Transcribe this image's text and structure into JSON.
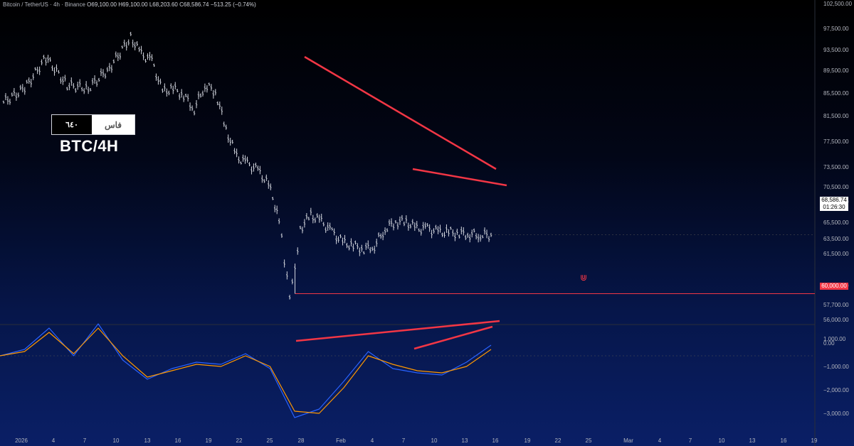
{
  "header": {
    "symbol": "Bitcoin / TetherUS · 4h · Binance",
    "open": "O69,100.00",
    "high": "H69,100.00",
    "low": "L68,203.60",
    "close": "C68,586.74",
    "change": "−513.25 (−0.74%)"
  },
  "logo": {
    "left_text": "٦٤٠",
    "right_text": "فاس"
  },
  "overlay_label": "BTC/4H",
  "last_price": {
    "value": "68,586.74",
    "countdown": "01:26:30"
  },
  "level_label": "60,000.00",
  "colors": {
    "accent_red": "#f23645",
    "macd": "#2962ff",
    "signal": "#ff9800",
    "candle": "#d1d4dc"
  },
  "chart_data": [
    {
      "type": "line",
      "title": "",
      "series": [
        {
          "name": "",
          "x": [
            0,
            4,
            8,
            12,
            16,
            20,
            24,
            26,
            28,
            30,
            32,
            34,
            36,
            38,
            40,
            42,
            44,
            46,
            48,
            50,
            52,
            53,
            54,
            55,
            56,
            58,
            60,
            62,
            64,
            66,
            68,
            70,
            72,
            74,
            76,
            78,
            80,
            82,
            84,
            86,
            88,
            90,
            92
          ],
          "values": [
            88000,
            90000,
            94500,
            90500,
            90000,
            93000,
            97500,
            95000,
            94000,
            89500,
            90000,
            89000,
            87000,
            90500,
            89500,
            84000,
            80000,
            79000,
            78000,
            76000,
            71000,
            65000,
            60000,
            64000,
            69500,
            71500,
            70500,
            69000,
            67500,
            67000,
            66500,
            67000,
            69500,
            70500,
            70500,
            69500,
            69500,
            69000,
            69000,
            68800,
            68700,
            68600,
            68586.74
          ]
        }
      ],
      "ylim": [
        56000,
        102500
      ],
      "y_ticks": [
        "102,500.00",
        "97,500.00",
        "93,500.00",
        "89,500.00",
        "85,500.00",
        "81,500.00",
        "77,500.00",
        "73,500.00",
        "70,500.00",
        "68,500.00",
        "65,500.00",
        "63,500.00",
        "61,500.00",
        "60,000.00",
        "57,700.00",
        "56,000.00"
      ],
      "x_ticks": [
        "2026",
        "4",
        "7",
        "10",
        "13",
        "16",
        "19",
        "22",
        "25",
        "28",
        "Feb",
        "4",
        "7",
        "10",
        "13",
        "16",
        "19",
        "22",
        "25",
        "Mar",
        "4",
        "7",
        "10",
        "13",
        "16",
        "19"
      ],
      "annotations": {
        "horizontal_level": 60000
      }
    },
    {
      "type": "line",
      "title": "",
      "series": [
        {
          "name": "",
          "values": [
            0,
            300,
            1300,
            0,
            1500,
            -200,
            -1100,
            -600,
            -300,
            -400,
            100,
            -600,
            -2900,
            -2500,
            -1200,
            200,
            -600,
            -800,
            -900,
            -300,
            500
          ]
        },
        {
          "name": "",
          "values": [
            0,
            200,
            1100,
            100,
            1300,
            0,
            -1000,
            -700,
            -400,
            -500,
            0,
            -500,
            -2600,
            -2700,
            -1500,
            0,
            -400,
            -700,
            -800,
            -500,
            300
          ]
        }
      ],
      "ylim": [
        -3500,
        1300
      ],
      "y_ticks": [
        "1,000.00",
        "0.00",
        "−1,000.00",
        "−2,000.00",
        "−3,000.00"
      ]
    }
  ]
}
